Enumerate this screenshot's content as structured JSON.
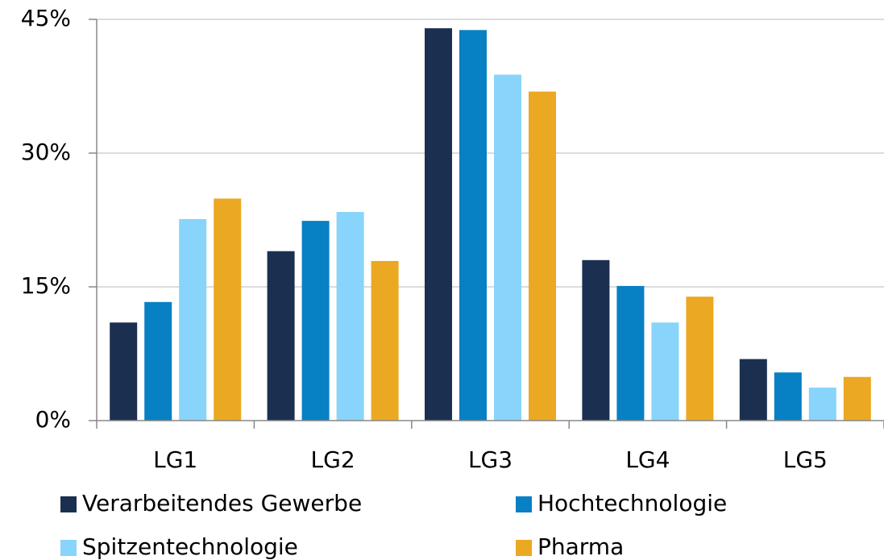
{
  "chart_data": {
    "type": "bar",
    "categories": [
      "LG1",
      "LG2",
      "LG3",
      "LG4",
      "LG5"
    ],
    "series": [
      {
        "name": "Verarbeitendes Gewerbe",
        "color": "#1b3050",
        "values": [
          11,
          19,
          44,
          18,
          6.9
        ]
      },
      {
        "name": "Hochtechnologie",
        "color": "#0780c4",
        "values": [
          13.3,
          22.4,
          43.8,
          15.1,
          5.4
        ]
      },
      {
        "name": "Spitzentechnologie",
        "color": "#88d4fb",
        "values": [
          22.6,
          23.4,
          38.8,
          11,
          3.7
        ]
      },
      {
        "name": "Pharma",
        "color": "#eba822",
        "values": [
          24.9,
          17.9,
          36.9,
          13.9,
          4.9
        ]
      }
    ],
    "ylim": [
      0,
      45
    ],
    "yticks": [
      {
        "value": 0,
        "label": "0%"
      },
      {
        "value": 15,
        "label": "15%"
      },
      {
        "value": 30,
        "label": "30%"
      },
      {
        "value": 45,
        "label": "45%"
      }
    ],
    "grid": true
  }
}
